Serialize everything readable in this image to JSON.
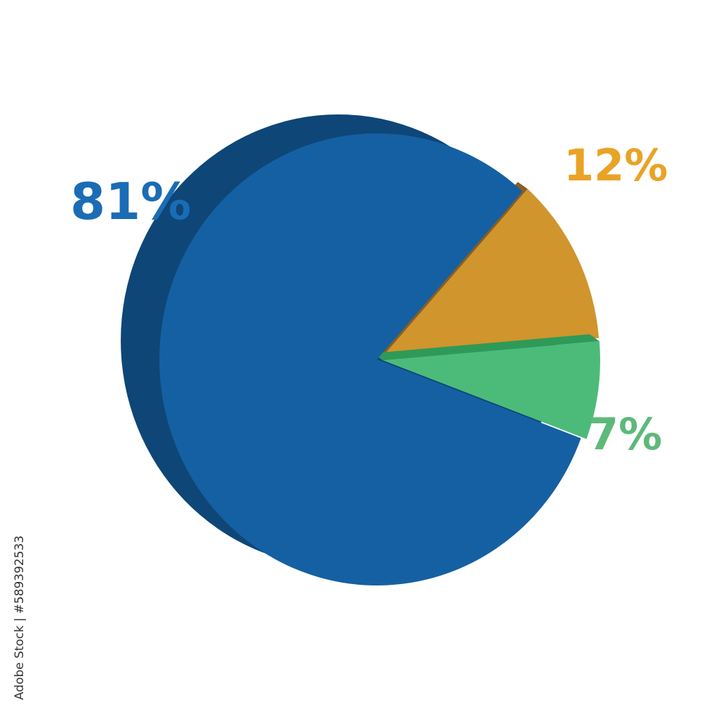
{
  "chart_data": {
    "type": "pie",
    "style": "3d",
    "title": "",
    "slices": [
      {
        "label": "12%",
        "value": 12,
        "color": "#d0952c"
      },
      {
        "label": "7%",
        "value": 7,
        "color": "#4cbb7a"
      },
      {
        "label": "81%",
        "value": 81,
        "color": "#1560a3"
      }
    ],
    "label_colors": {
      "81%": "#1a6cb5",
      "12%": "#e9a326",
      "7%": "#5db97a"
    },
    "legend": "none"
  },
  "watermark": "Adobe Stock",
  "credit": "Adobe Stock | #589392533"
}
